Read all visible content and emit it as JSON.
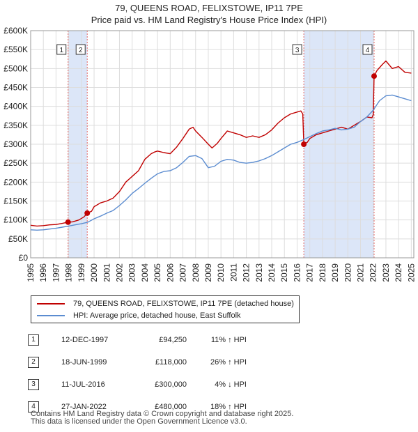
{
  "title_line1": "79, QUEENS ROAD, FELIXSTOWE, IP11 7PE",
  "title_line2": "Price paid vs. HM Land Registry's House Price Index (HPI)",
  "chart_data": {
    "type": "line",
    "xlim": [
      1995,
      2025.2
    ],
    "ylim": [
      0,
      600000
    ],
    "y_ticks": [
      0,
      50000,
      100000,
      150000,
      200000,
      250000,
      300000,
      350000,
      400000,
      450000,
      500000,
      550000,
      600000
    ],
    "y_tick_labels": [
      "£0",
      "£50K",
      "£100K",
      "£150K",
      "£200K",
      "£250K",
      "£300K",
      "£350K",
      "£400K",
      "£450K",
      "£500K",
      "£550K",
      "£600K"
    ],
    "x_ticks": [
      1995,
      1996,
      1997,
      1998,
      1999,
      2000,
      2001,
      2002,
      2003,
      2004,
      2005,
      2006,
      2007,
      2008,
      2009,
      2010,
      2011,
      2012,
      2013,
      2014,
      2015,
      2016,
      2017,
      2018,
      2019,
      2020,
      2021,
      2022,
      2023,
      2024,
      2025
    ],
    "x_tick_labels": [
      "1995",
      "1996",
      "1997",
      "1998",
      "1999",
      "2000",
      "2001",
      "2002",
      "2003",
      "2004",
      "2005",
      "2006",
      "2007",
      "2008",
      "2009",
      "2010",
      "2011",
      "2012",
      "2013",
      "2014",
      "2015",
      "2016",
      "2017",
      "2018",
      "2019",
      "2020",
      "2021",
      "2022",
      "2023",
      "2024",
      "2025"
    ],
    "grid": true,
    "colors": {
      "property": "#c00000",
      "hpi": "#5b8cd0",
      "shade": "#dce6f8",
      "marker_line": "#e06666"
    },
    "shaded_ranges": [
      [
        1997.95,
        1999.46
      ],
      [
        2016.53,
        2022.07
      ]
    ],
    "series": [
      {
        "name": "79, QUEENS ROAD, FELIXSTOWE, IP11 7PE (detached house)",
        "color": "#c00000",
        "x": [
          1995,
          1995.5,
          1996,
          1996.5,
          1997,
          1997.5,
          1997.95,
          1998.3,
          1998.8,
          1999.2,
          1999.46,
          1999.8,
          2000,
          2000.5,
          2001,
          2001.5,
          2002,
          2002.5,
          2003,
          2003.5,
          2004,
          2004.5,
          2004.8,
          2005,
          2005.5,
          2006,
          2006.5,
          2007,
          2007.5,
          2007.8,
          2008,
          2008.5,
          2009,
          2009.3,
          2009.7,
          2010,
          2010.5,
          2011,
          2011.5,
          2012,
          2012.5,
          2013,
          2013.5,
          2014,
          2014.5,
          2015,
          2015.5,
          2016,
          2016.3,
          2016.45,
          2016.53,
          2016.8,
          2017,
          2017.5,
          2018,
          2018.5,
          2019,
          2019.5,
          2020,
          2020.5,
          2021,
          2021.5,
          2021.9,
          2022.0,
          2022.07,
          2022.3,
          2022.7,
          2023,
          2023.5,
          2024,
          2024.5,
          2025
        ],
        "values": [
          86000,
          84000,
          85000,
          87000,
          88000,
          91000,
          94250,
          95000,
          100000,
          108000,
          118000,
          123000,
          135000,
          145000,
          150000,
          158000,
          175000,
          200000,
          215000,
          230000,
          260000,
          275000,
          280000,
          282000,
          278000,
          275000,
          292000,
          315000,
          340000,
          345000,
          335000,
          318000,
          300000,
          290000,
          302000,
          315000,
          335000,
          330000,
          325000,
          318000,
          322000,
          318000,
          325000,
          338000,
          356000,
          370000,
          380000,
          385000,
          388000,
          380000,
          300000,
          305000,
          315000,
          325000,
          330000,
          335000,
          340000,
          345000,
          340000,
          350000,
          360000,
          372000,
          370000,
          378000,
          480000,
          495000,
          510000,
          520000,
          500000,
          505000,
          490000,
          488000
        ]
      },
      {
        "name": "HPI: Average price, detached house, East Suffolk",
        "color": "#5b8cd0",
        "x": [
          1995,
          1995.5,
          1996,
          1996.5,
          1997,
          1997.5,
          1998,
          1998.5,
          1999,
          1999.5,
          2000,
          2000.5,
          2001,
          2001.5,
          2002,
          2002.5,
          2003,
          2003.5,
          2004,
          2004.5,
          2005,
          2005.5,
          2006,
          2006.5,
          2007,
          2007.5,
          2008,
          2008.5,
          2009,
          2009.5,
          2010,
          2010.5,
          2011,
          2011.5,
          2012,
          2012.5,
          2013,
          2013.5,
          2014,
          2014.5,
          2015,
          2015.5,
          2016,
          2016.5,
          2017,
          2017.5,
          2018,
          2018.5,
          2019,
          2019.5,
          2020,
          2020.5,
          2021,
          2021.5,
          2022,
          2022.5,
          2023,
          2023.5,
          2024,
          2024.5,
          2025
        ],
        "values": [
          74000,
          73000,
          74000,
          76000,
          78000,
          81000,
          84000,
          87000,
          90000,
          94000,
          103000,
          110000,
          118000,
          125000,
          138000,
          153000,
          170000,
          183000,
          197000,
          210000,
          222000,
          228000,
          230000,
          238000,
          252000,
          268000,
          270000,
          262000,
          238000,
          242000,
          255000,
          260000,
          258000,
          252000,
          250000,
          252000,
          256000,
          262000,
          270000,
          280000,
          290000,
          300000,
          305000,
          312000,
          320000,
          328000,
          335000,
          338000,
          342000,
          338000,
          340000,
          345000,
          360000,
          372000,
          390000,
          415000,
          428000,
          430000,
          425000,
          420000,
          415000
        ]
      }
    ],
    "sales": [
      {
        "id": "1",
        "x": 1997.95,
        "value": 94250
      },
      {
        "id": "2",
        "x": 1999.46,
        "value": 118000
      },
      {
        "id": "3",
        "x": 2016.53,
        "value": 300000
      },
      {
        "id": "4",
        "x": 2022.07,
        "value": 480000
      }
    ]
  },
  "legend": {
    "property_label": "79, QUEENS ROAD, FELIXSTOWE, IP11 7PE (detached house)",
    "hpi_label": "HPI: Average price, detached house, East Suffolk"
  },
  "transactions": [
    {
      "id": "1",
      "date": "12-DEC-1997",
      "price": "£94,250",
      "hpi": "11% ↑ HPI"
    },
    {
      "id": "2",
      "date": "18-JUN-1999",
      "price": "£118,000",
      "hpi": "26% ↑ HPI"
    },
    {
      "id": "3",
      "date": "11-JUL-2016",
      "price": "£300,000",
      "hpi": "4% ↓ HPI"
    },
    {
      "id": "4",
      "date": "27-JAN-2022",
      "price": "£480,000",
      "hpi": "18% ↑ HPI"
    }
  ],
  "footer": {
    "line1": "Contains HM Land Registry data © Crown copyright and database right 2025.",
    "line2": "This data is licensed under the Open Government Licence v3.0."
  }
}
